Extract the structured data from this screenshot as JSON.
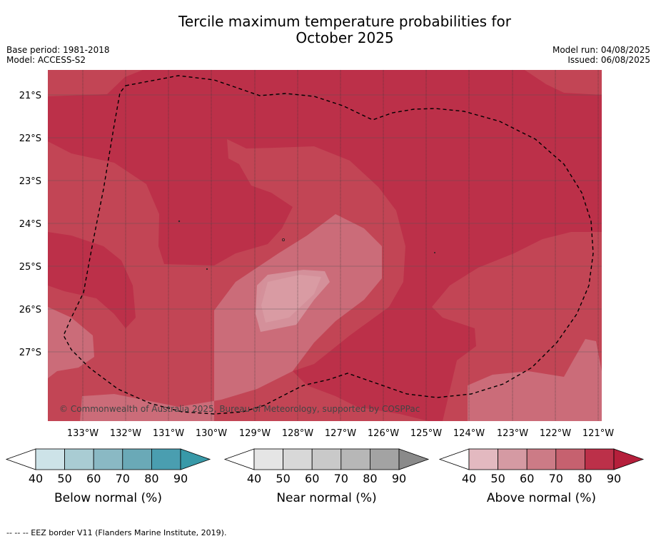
{
  "title_line1": "Tercile maximum temperature probabilities for",
  "title_line2": "October 2025",
  "base_period": "Base period: 1981-2018",
  "model": "Model: ACCESS-S2",
  "model_run": "Model run: 04/08/2025",
  "issued": "Issued: 06/08/2025",
  "map": {
    "lat_labels": [
      "21°S",
      "22°S",
      "23°S",
      "24°S",
      "25°S",
      "26°S",
      "27°S"
    ],
    "lon_labels": [
      "133°W",
      "132°W",
      "131°W",
      "130°W",
      "129°W",
      "128°W",
      "127°W",
      "126°W",
      "125°W",
      "124°W",
      "123°W",
      "122°W",
      "121°W"
    ],
    "copyright": "© Commonwealth of Australia 2025, Bureau of Meteorology, supported by COSPPac",
    "eez_line_color": "#000000"
  },
  "legends": [
    {
      "label": "Below normal (%)",
      "ticks": [
        "40",
        "50",
        "60",
        "70",
        "80",
        "90"
      ],
      "colors": [
        "#cde3e8",
        "#a9ccd3",
        "#8ab9c4",
        "#6aa9b7",
        "#4a9eb0",
        "#3899a8"
      ]
    },
    {
      "label": "Near normal (%)",
      "ticks": [
        "40",
        "50",
        "60",
        "70",
        "80",
        "90"
      ],
      "colors": [
        "#e5e5e5",
        "#d8d8d8",
        "#c9c9c9",
        "#b7b7b7",
        "#a3a3a3",
        "#8a8a8a"
      ]
    },
    {
      "label": "Above normal (%)",
      "ticks": [
        "40",
        "50",
        "60",
        "70",
        "80",
        "90"
      ],
      "colors": [
        "#e3b9c0",
        "#d59aa3",
        "#cc7b86",
        "#c6616f",
        "#bc3049",
        "#b51f3b"
      ]
    }
  ],
  "footer_note": "--  --  -- EEZ border V11 (Flanders Marine Institute, 2019)."
}
